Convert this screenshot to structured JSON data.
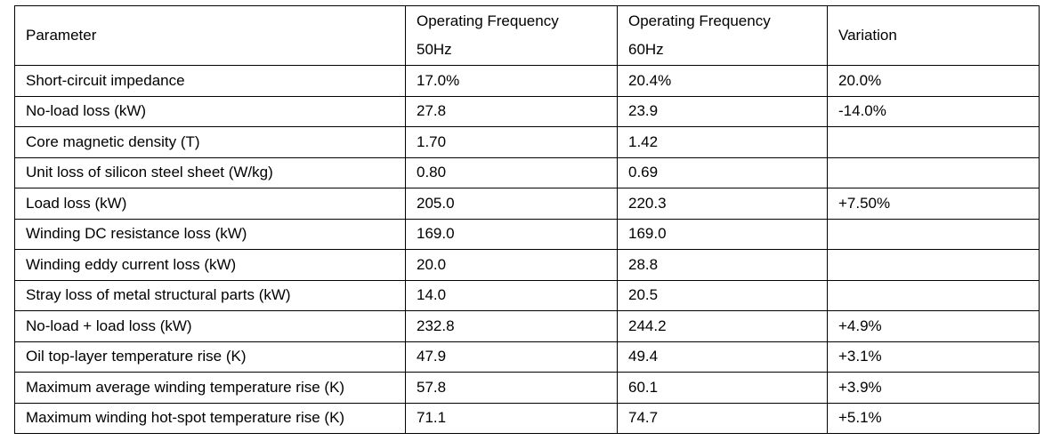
{
  "table": {
    "headers": {
      "parameter": "Parameter",
      "freq50": [
        "Operating Frequency",
        "50Hz"
      ],
      "freq60": [
        "Operating Frequency",
        "60Hz"
      ],
      "variation": "Variation"
    },
    "rows": [
      {
        "parameter": "Short-circuit impedance",
        "f50": "17.0%",
        "f60": "20.4%",
        "variation": "20.0%"
      },
      {
        "parameter": "No-load loss (kW)",
        "f50": "27.8",
        "f60": "23.9",
        "variation": "-14.0%"
      },
      {
        "parameter": "Core magnetic density (T)",
        "f50": "1.70",
        "f60": "1.42",
        "variation": ""
      },
      {
        "parameter": "Unit loss of silicon steel sheet (W/kg)",
        "f50": "0.80",
        "f60": "0.69",
        "variation": ""
      },
      {
        "parameter": "Load loss (kW)",
        "f50": "205.0",
        "f60": "220.3",
        "variation": "+7.50%"
      },
      {
        "parameter": "Winding DC resistance loss (kW)",
        "f50": "169.0",
        "f60": "169.0",
        "variation": ""
      },
      {
        "parameter": "Winding eddy current loss (kW)",
        "f50": "20.0",
        "f60": "28.8",
        "variation": ""
      },
      {
        "parameter": "Stray loss of metal structural parts (kW)",
        "f50": "14.0",
        "f60": "20.5",
        "variation": ""
      },
      {
        "parameter": "No-load + load loss (kW)",
        "f50": "232.8",
        "f60": "244.2",
        "variation": "+4.9%"
      },
      {
        "parameter": "Oil top-layer temperature rise (K)",
        "f50": "47.9",
        "f60": "49.4",
        "variation": "+3.1%"
      },
      {
        "parameter": "Maximum average winding temperature rise (K)",
        "f50": "57.8",
        "f60": "60.1",
        "variation": "+3.9%"
      },
      {
        "parameter": "Maximum winding hot-spot temperature rise (K)",
        "f50": "71.1",
        "f60": "74.7",
        "variation": "+5.1%"
      }
    ]
  }
}
